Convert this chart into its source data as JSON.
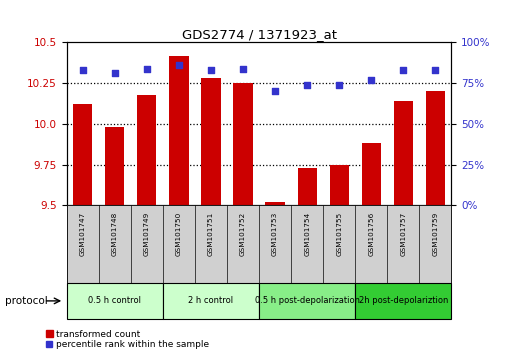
{
  "title": "GDS2774 / 1371923_at",
  "samples": [
    "GSM101747",
    "GSM101748",
    "GSM101749",
    "GSM101750",
    "GSM101751",
    "GSM101752",
    "GSM101753",
    "GSM101754",
    "GSM101755",
    "GSM101756",
    "GSM101757",
    "GSM101759"
  ],
  "transformed_counts": [
    10.12,
    9.98,
    10.18,
    10.42,
    10.28,
    10.25,
    9.52,
    9.73,
    9.75,
    9.88,
    10.14,
    10.2
  ],
  "percentile_ranks": [
    83,
    81,
    84,
    86,
    83,
    84,
    70,
    74,
    74,
    77,
    83,
    83
  ],
  "ylim_left": [
    9.5,
    10.5
  ],
  "ylim_right": [
    0,
    100
  ],
  "yticks_left": [
    9.5,
    9.75,
    10.0,
    10.25,
    10.5
  ],
  "yticks_right": [
    0,
    25,
    50,
    75,
    100
  ],
  "bar_color": "#cc0000",
  "dot_color": "#3333cc",
  "bar_bottom": 9.5,
  "protocol_groups": [
    {
      "label": "0.5 h control",
      "start": 0,
      "end": 3,
      "color": "#ccffcc"
    },
    {
      "label": "2 h control",
      "start": 3,
      "end": 6,
      "color": "#ccffcc"
    },
    {
      "label": "0.5 h post-depolarization",
      "start": 6,
      "end": 9,
      "color": "#88ee88"
    },
    {
      "label": "2h post-depolariztion",
      "start": 9,
      "end": 12,
      "color": "#33cc33"
    }
  ],
  "legend_bar_label": "transformed count",
  "legend_dot_label": "percentile rank within the sample",
  "bg_color": "#ffffff",
  "label_area_color": "#d0d0d0",
  "protocol_label": "protocol"
}
